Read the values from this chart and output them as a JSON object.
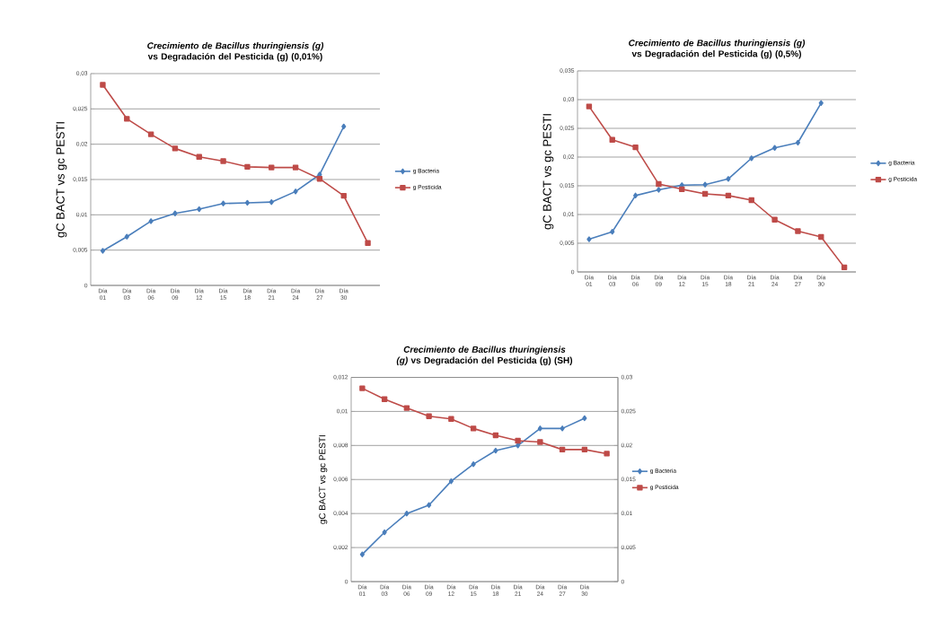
{
  "chart_data": [
    {
      "type": "line",
      "title": "*Crecimiento de Bacillus thuringiensis (g)* vs Degradación del Pesticida (g) (0,01%)",
      "ylabel": "gC BACT vs gc PESTI",
      "categories": [
        "Día 01",
        "Día 03",
        "Día 06",
        "Día 09",
        "Día 12",
        "Día 15",
        "Día 18",
        "Día 21",
        "Día 24",
        "Día 27",
        "Día 30",
        null
      ],
      "series": [
        {
          "name": "g Bacteria",
          "color": "#4a7ebb",
          "marker": "diamond",
          "values": [
            0.0049,
            0.0069,
            0.0091,
            0.0102,
            0.0108,
            0.0116,
            0.0117,
            0.0118,
            0.0133,
            0.0157,
            0.0225,
            null
          ]
        },
        {
          "name": "g Pesticida",
          "color": "#be4b48",
          "marker": "square",
          "values": [
            0.0284,
            0.0236,
            0.0214,
            0.0194,
            0.0182,
            0.0176,
            0.0168,
            0.0167,
            0.0167,
            0.0151,
            0.0127,
            0.006
          ]
        }
      ],
      "ylim": [
        0,
        0.03
      ],
      "yticks": [
        0,
        {
          "value": 0.005,
          "label": "0,005"
        },
        {
          "value": 0.01,
          "label": "0,01"
        },
        {
          "value": 0.015,
          "label": "0,015"
        },
        {
          "value": 0.02,
          "label": "0,02"
        },
        {
          "value": 0.025,
          "label": "0,025"
        },
        {
          "value": 0.03,
          "label": "0,03"
        }
      ],
      "grid": "y",
      "legend": "right"
    },
    {
      "type": "line",
      "title": "*Crecimiento de Bacillus thuringiensis (g)* vs Degradación del Pesticida (g) (0,5%)",
      "ylabel": "gC BACT vs gc PESTI",
      "categories": [
        "Día 01",
        "Día 03",
        "Día 06",
        "Día 09",
        "Día 12",
        "Día 15",
        "Día 18",
        "Día 21",
        "Día 24",
        "Día 27",
        "Día 30",
        null
      ],
      "series": [
        {
          "name": "g Bacteria",
          "color": "#4a7ebb",
          "marker": "diamond",
          "values": [
            0.0057,
            0.007,
            0.0133,
            0.0143,
            0.0151,
            0.0152,
            0.0162,
            0.0198,
            0.0216,
            0.0225,
            0.0294,
            null
          ]
        },
        {
          "name": "g Pesticida",
          "color": "#be4b48",
          "marker": "square",
          "values": [
            0.0288,
            0.023,
            0.0217,
            0.0153,
            0.0144,
            0.0136,
            0.0133,
            0.0125,
            0.0091,
            0.0071,
            0.0061,
            0.0008
          ]
        }
      ],
      "ylim": [
        0,
        0.035
      ],
      "yticks": [
        0,
        {
          "value": 0.005,
          "label": "0,005"
        },
        {
          "value": 0.01,
          "label": "0,01"
        },
        {
          "value": 0.015,
          "label": "0,015"
        },
        {
          "value": 0.02,
          "label": "0,02"
        },
        {
          "value": 0.025,
          "label": "0,025"
        },
        {
          "value": 0.03,
          "label": "0,03"
        },
        {
          "value": 0.035,
          "label": "0,035"
        }
      ],
      "grid": "y",
      "legend": "right"
    },
    {
      "type": "line",
      "title": "*Crecimiento de Bacillus thuringiensis (g)* vs Degradación del Pesticida (g) (SH)",
      "ylabel": "gC BACT vs gc PESTI",
      "categories": [
        "Día 01",
        "Día 03",
        "Día 06",
        "Día 09",
        "Día 12",
        "Día 15",
        "Día 18",
        "Día 21",
        "Día 24",
        "Día 27",
        "Día 30",
        null
      ],
      "series": [
        {
          "name": "g Bacteria",
          "color": "#4a7ebb",
          "marker": "diamond",
          "values": [
            0.0016,
            0.0029,
            0.004,
            0.0045,
            0.0059,
            0.0069,
            0.0077,
            0.008,
            0.009,
            0.009,
            0.0096,
            null
          ]
        },
        {
          "name": "g Pesticida",
          "color": "#be4b48",
          "marker": "square",
          "axis": "y2",
          "values": [
            0.0284,
            0.0268,
            0.0255,
            0.0243,
            0.0239,
            0.0225,
            0.0215,
            0.0207,
            0.0205,
            0.0194,
            0.0194,
            0.0188
          ]
        }
      ],
      "ylim": [
        0,
        0.012
      ],
      "yticks": [
        0,
        {
          "value": 0.002,
          "label": "0,002"
        },
        {
          "value": 0.004,
          "label": "0,004"
        },
        {
          "value": 0.006,
          "label": "0,006"
        },
        {
          "value": 0.008,
          "label": "0,008"
        },
        {
          "value": 0.01,
          "label": "0,01"
        },
        {
          "value": 0.012,
          "label": "0,012"
        }
      ],
      "y2lim": [
        0,
        0.03
      ],
      "y2ticks": [
        0,
        {
          "value": 0.005,
          "label": "0,005"
        },
        {
          "value": 0.01,
          "label": "0,01"
        },
        {
          "value": 0.015,
          "label": "0,015"
        },
        {
          "value": 0.02,
          "label": "0,02"
        },
        {
          "value": 0.025,
          "label": "0,025"
        },
        {
          "value": 0.03,
          "label": "0,03"
        }
      ],
      "grid": "y",
      "legend": "right"
    }
  ]
}
